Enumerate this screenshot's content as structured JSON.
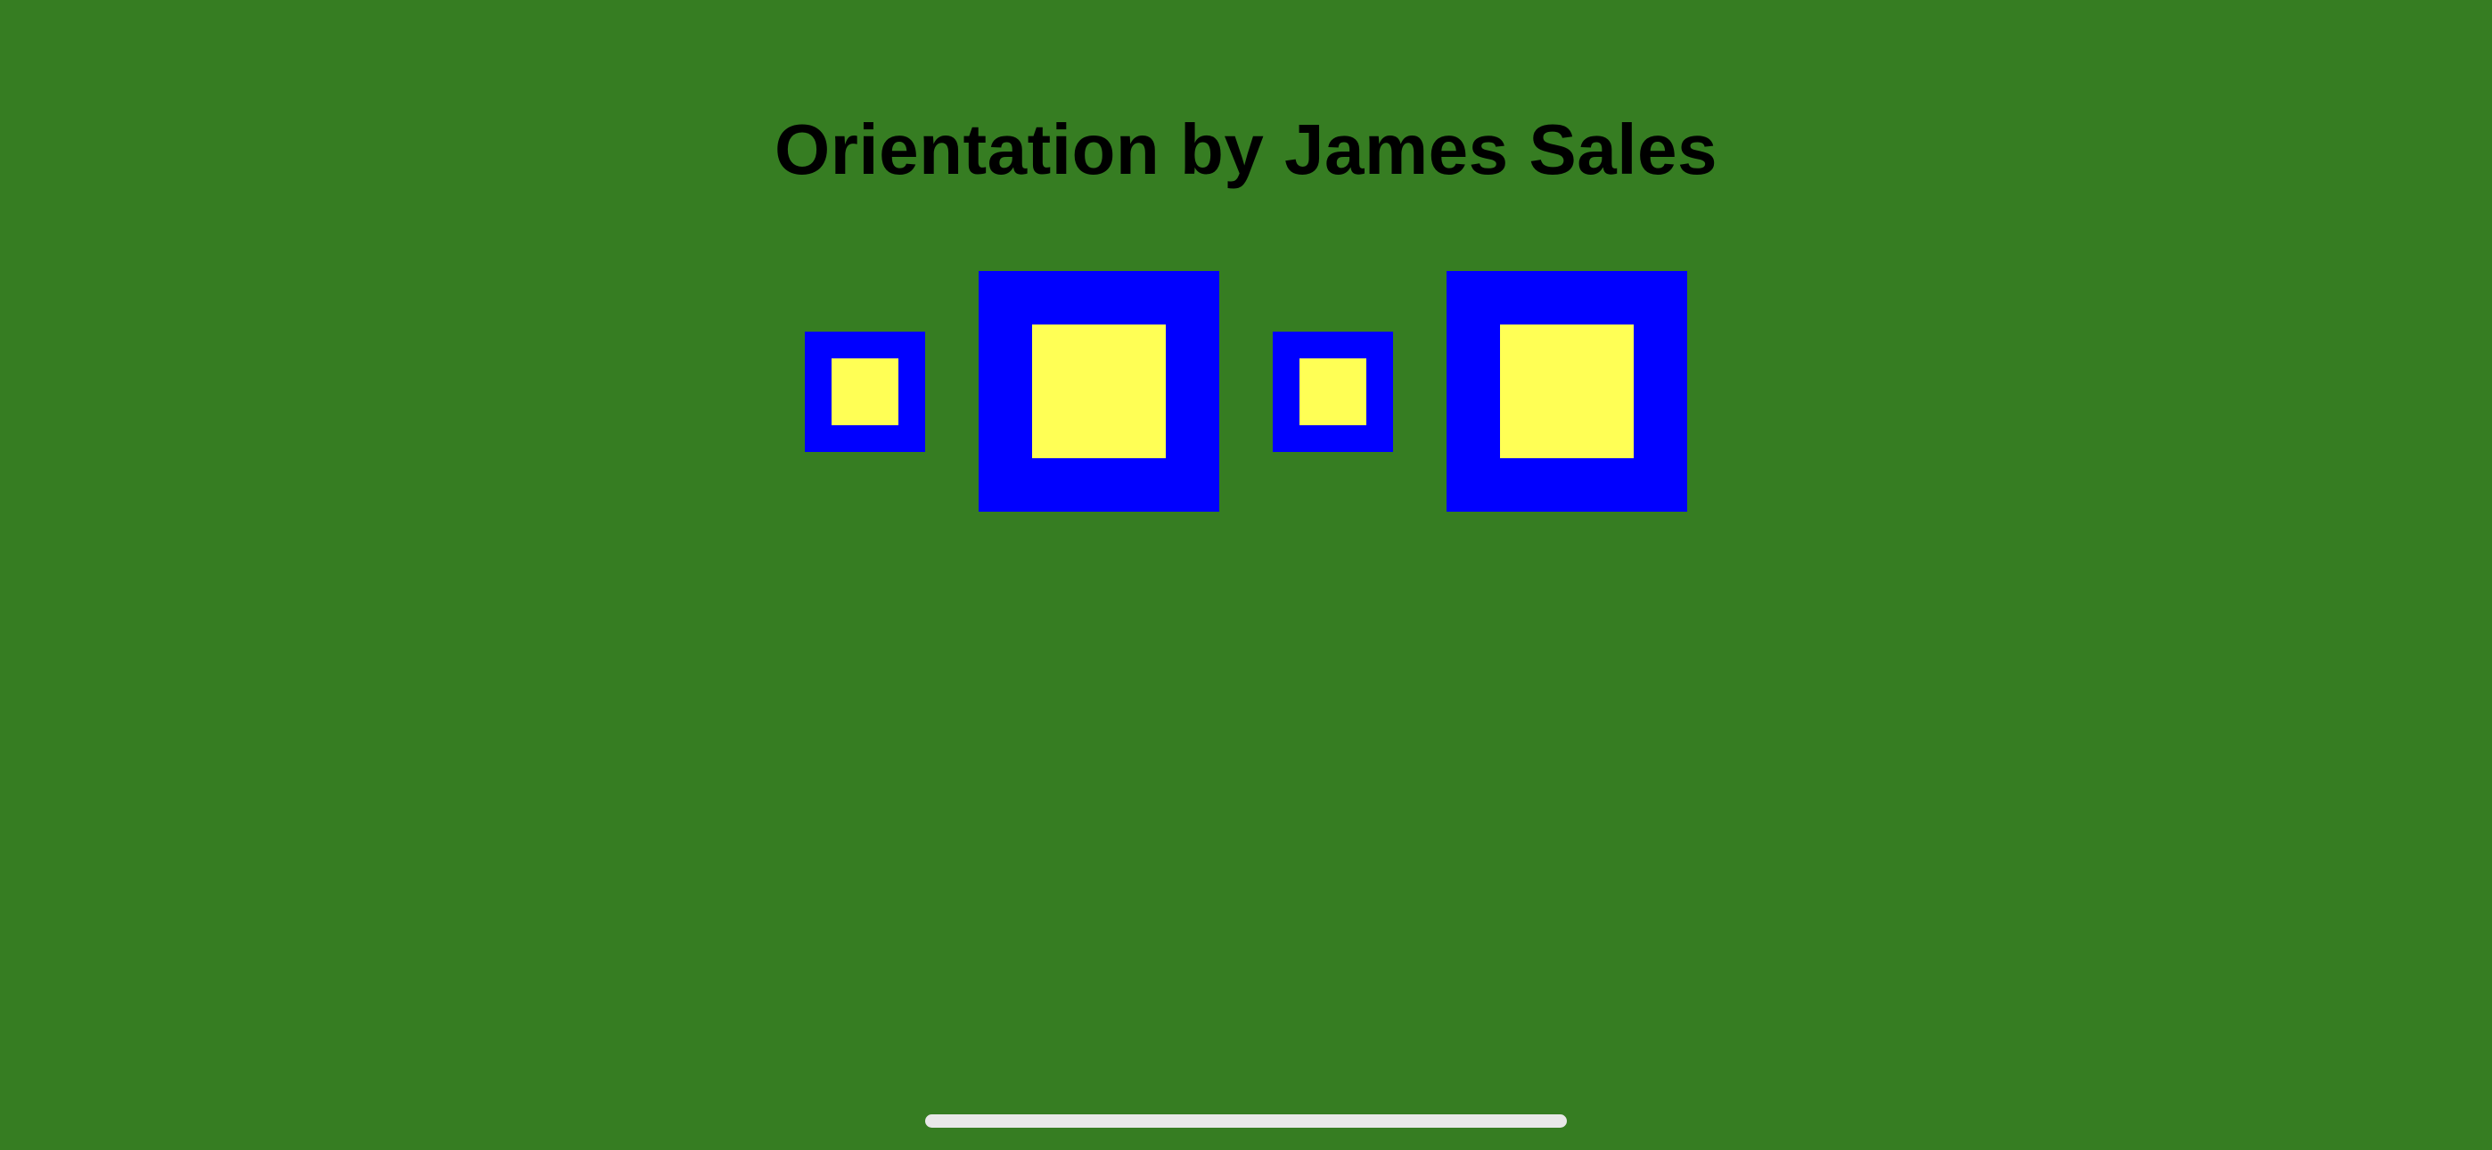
{
  "screen": {
    "title": "Orientation by James Sales",
    "colors": {
      "background": "#367D22",
      "outer_square": "#0000FF",
      "inner_square": "#FFFF55",
      "title_text": "#000000",
      "home_indicator": "#E8E8E8"
    },
    "squares": [
      {
        "name": "square-small-1",
        "size": "small"
      },
      {
        "name": "square-large-1",
        "size": "large"
      },
      {
        "name": "square-small-2",
        "size": "small"
      },
      {
        "name": "square-large-2",
        "size": "large"
      }
    ]
  }
}
